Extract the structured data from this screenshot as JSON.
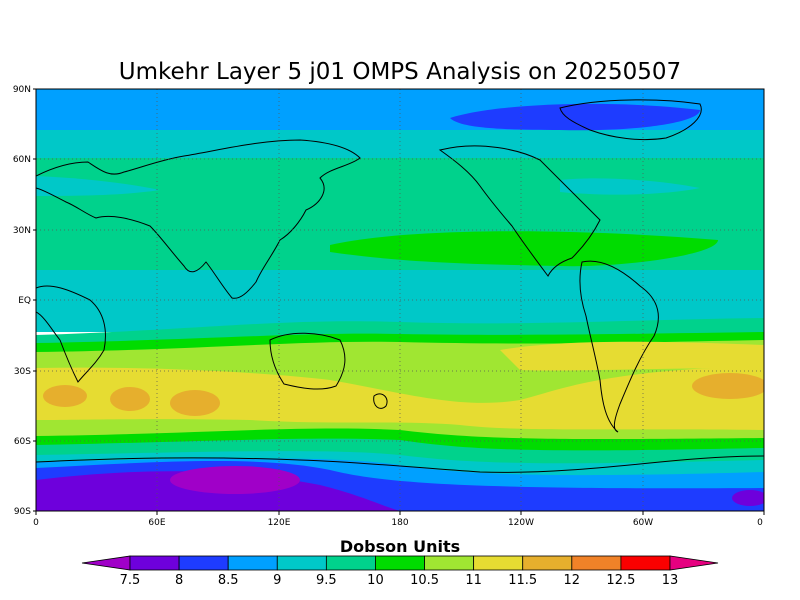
{
  "title": "Umkehr Layer 5 j01 OMPS Analysis on 20250507",
  "lat_ticks": [
    "90N",
    "60N",
    "30N",
    "EQ",
    "30S",
    "60S",
    "90S"
  ],
  "lon_ticks": [
    "0",
    "60E",
    "120E",
    "180",
    "120W",
    "60W",
    "0"
  ],
  "colorbar": {
    "title": "Dobson Units",
    "labels": [
      "7.5",
      "8",
      "8.5",
      "9",
      "9.5",
      "10",
      "10.5",
      "11",
      "11.5",
      "12",
      "12.5",
      "13"
    ],
    "colors": [
      "#a000c8",
      "#6e00dc",
      "#1e3cff",
      "#00a0ff",
      "#00c8c8",
      "#00d28c",
      "#00dc00",
      "#a0e632",
      "#e6dc32",
      "#e6af2d",
      "#f08228",
      "#fa0000",
      "#e60080"
    ]
  },
  "chart_data": {
    "type": "heatmap",
    "title": "Umkehr Layer 5 j01 OMPS Analysis on 20250507",
    "unit": "Dobson Units",
    "x_range": [
      0,
      360
    ],
    "y_range": [
      -90,
      90
    ],
    "contour_levels": [
      7.5,
      8,
      8.5,
      9,
      9.5,
      10,
      10.5,
      11,
      11.5,
      12,
      12.5,
      13
    ],
    "zonal_profile": [
      {
        "lat": 85,
        "value": 9.2
      },
      {
        "lat": 75,
        "value": 9.3
      },
      {
        "lat": 65,
        "value": 9.6
      },
      {
        "lat": 50,
        "value": 9.9
      },
      {
        "lat": 30,
        "value": 10.1
      },
      {
        "lat": 20,
        "value": 10.2
      },
      {
        "lat": 10,
        "value": 9.8
      },
      {
        "lat": 0,
        "value": 9.6
      },
      {
        "lat": -10,
        "value": 9.9
      },
      {
        "lat": -20,
        "value": 10.6
      },
      {
        "lat": -30,
        "value": 11.0
      },
      {
        "lat": -40,
        "value": 11.6
      },
      {
        "lat": -50,
        "value": 11.2
      },
      {
        "lat": -57,
        "value": 10.6
      },
      {
        "lat": -63,
        "value": 10.0
      },
      {
        "lat": -70,
        "value": 9.3
      },
      {
        "lat": -75,
        "value": 8.6
      },
      {
        "lat": -80,
        "value": 7.9
      }
    ]
  }
}
